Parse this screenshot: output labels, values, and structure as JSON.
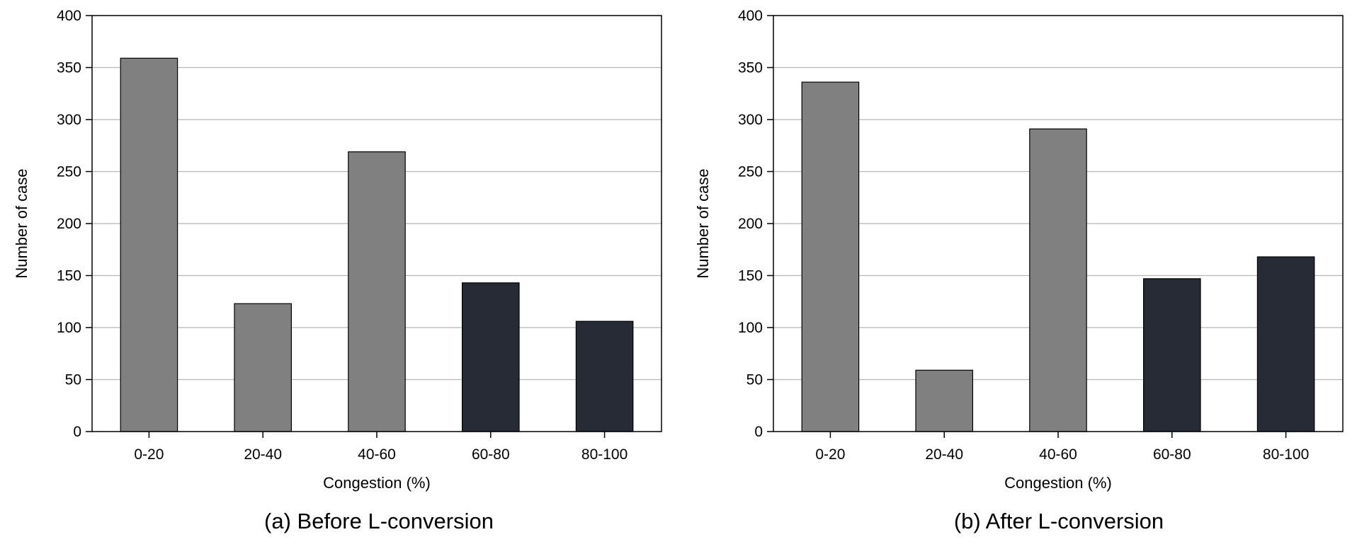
{
  "chart_data": [
    {
      "type": "bar",
      "caption": "(a) Before L-conversion",
      "categories": [
        "0-20",
        "20-40",
        "40-60",
        "60-80",
        "80-100"
      ],
      "values": [
        359,
        123,
        269,
        143,
        106
      ],
      "bar_colors": [
        "#808080",
        "#808080",
        "#808080",
        "#262b35",
        "#262b35"
      ],
      "xlabel": "Congestion (%)",
      "ylabel": "Number of case",
      "ylim": [
        0,
        400
      ],
      "yticks": [
        0,
        50,
        100,
        150,
        200,
        250,
        300,
        350,
        400
      ],
      "grid": true,
      "legend": "none"
    },
    {
      "type": "bar",
      "caption": "(b) After L-conversion",
      "categories": [
        "0-20",
        "20-40",
        "40-60",
        "60-80",
        "80-100"
      ],
      "values": [
        336,
        59,
        291,
        147,
        168
      ],
      "bar_colors": [
        "#808080",
        "#808080",
        "#808080",
        "#262b35",
        "#262b35"
      ],
      "xlabel": "Congestion (%)",
      "ylabel": "Number of case",
      "ylim": [
        0,
        400
      ],
      "yticks": [
        0,
        50,
        100,
        150,
        200,
        250,
        300,
        350,
        400
      ],
      "grid": true,
      "legend": "none"
    }
  ],
  "colors": {
    "grid": "#b8b8b8",
    "axis": "#000000",
    "bar_outline": "#000000"
  }
}
